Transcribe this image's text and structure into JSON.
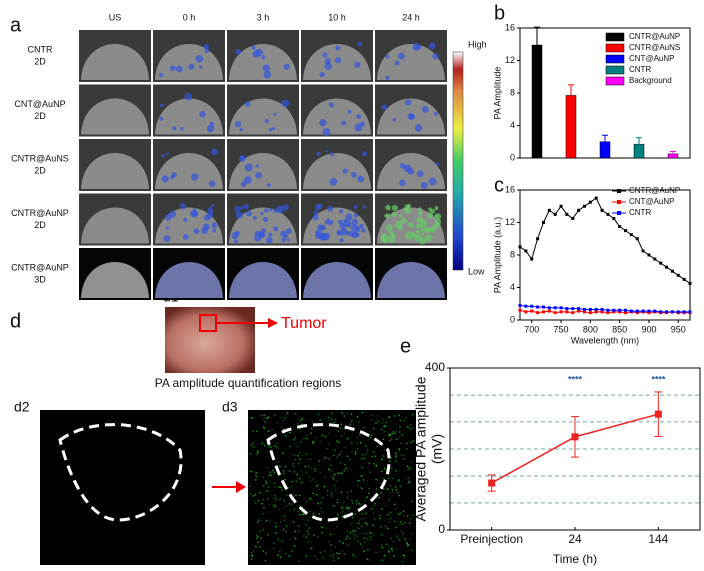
{
  "panel_a": {
    "label": "a",
    "columns": [
      "US",
      "0 h",
      "3 h",
      "10 h",
      "24 h"
    ],
    "rows": [
      [
        "CNTR",
        "2D"
      ],
      [
        "CNT@AuNP",
        "2D"
      ],
      [
        "CNTR@AuNS",
        "2D"
      ],
      [
        "CNTR@AuNP",
        "2D"
      ],
      [
        "CNTR@AuNP",
        "3D"
      ]
    ],
    "colorbar": {
      "high": "High",
      "low": "Low"
    }
  },
  "panel_d": {
    "label": "d",
    "d1": "d1",
    "d2": "d2",
    "d3": "d3",
    "tumor": "Tumor",
    "caption": "PA amplitude quantification regions"
  },
  "chart_data": [
    {
      "type": "bar",
      "label": "b",
      "ylabel": "PA Amplitude",
      "ylim": [
        0,
        16
      ],
      "yticks": [
        0,
        4,
        8,
        12,
        16
      ],
      "series": [
        {
          "name": "CNTR@AuNP",
          "color": "#000000",
          "values": [
            13.9
          ],
          "errors": [
            2.2
          ]
        },
        {
          "name": "CNTR@AuNS",
          "color": "#ff0000",
          "values": [
            7.7
          ],
          "errors": [
            1.3
          ]
        },
        {
          "name": "CNT@AuNP",
          "color": "#0000ff",
          "values": [
            2.0
          ],
          "errors": [
            0.8
          ]
        },
        {
          "name": "CNTR",
          "color": "#008080",
          "values": [
            1.7
          ],
          "errors": [
            0.8
          ]
        },
        {
          "name": "Background",
          "color": "#ff00ff",
          "values": [
            0.5
          ],
          "errors": [
            0.3
          ]
        }
      ]
    },
    {
      "type": "line",
      "label": "c",
      "xlabel": "Wavelength (nm)",
      "ylabel": "PA Amplitude (a.u.)",
      "xlim": [
        680,
        970
      ],
      "xticks": [
        700,
        750,
        800,
        850,
        900,
        950
      ],
      "ylim": [
        0,
        16
      ],
      "yticks": [
        0,
        4,
        8,
        12,
        16
      ],
      "x": [
        680,
        690,
        700,
        710,
        720,
        730,
        740,
        750,
        760,
        770,
        780,
        790,
        800,
        810,
        820,
        830,
        840,
        850,
        860,
        870,
        880,
        890,
        900,
        910,
        920,
        930,
        940,
        950,
        960,
        970
      ],
      "series": [
        {
          "name": "CNTR@AuNP",
          "color": "#000000",
          "values": [
            9,
            8.5,
            7.5,
            10,
            12,
            13.5,
            13,
            14,
            13,
            12.5,
            13.5,
            14,
            14.5,
            15,
            13.5,
            13,
            12.5,
            11.5,
            11,
            10.5,
            10,
            8.5,
            8,
            7.5,
            7,
            6.5,
            6,
            5.5,
            5,
            4.5
          ]
        },
        {
          "name": "CNT@AuNP",
          "color": "#ff0000",
          "values": [
            1.2,
            1.0,
            1.1,
            0.9,
            1.0,
            1.1,
            0.9,
            1.0,
            1.0,
            0.9,
            1.1,
            1.0,
            0.9,
            1.0,
            1.0,
            0.9,
            1.0,
            1.0,
            0.9,
            1.0,
            0.9,
            1.0,
            0.9,
            1.0,
            0.9,
            0.9,
            1.0,
            0.9,
            0.9,
            0.9
          ]
        },
        {
          "name": "CNTR",
          "color": "#0000ff",
          "values": [
            1.8,
            1.7,
            1.7,
            1.6,
            1.6,
            1.5,
            1.5,
            1.5,
            1.4,
            1.4,
            1.4,
            1.3,
            1.3,
            1.3,
            1.3,
            1.2,
            1.2,
            1.2,
            1.2,
            1.1,
            1.1,
            1.1,
            1.1,
            1.1,
            1.0,
            1.0,
            1.0,
            1.0,
            1.0,
            1.0
          ]
        }
      ]
    },
    {
      "type": "errline",
      "label": "e",
      "xlabel": "Time (h)",
      "ylabel": [
        "Averaged PA amplitude",
        "(mV)"
      ],
      "categories": [
        "Preinjection",
        "24",
        "144"
      ],
      "ylim": [
        0,
        400
      ],
      "yticks": [
        0,
        400
      ],
      "hlines": [
        67,
        133,
        200,
        267,
        333
      ],
      "color": "#ee2222",
      "values": [
        116,
        230,
        286
      ],
      "errors": [
        20,
        50,
        55
      ],
      "annotations": [
        null,
        "****",
        "****"
      ]
    }
  ]
}
